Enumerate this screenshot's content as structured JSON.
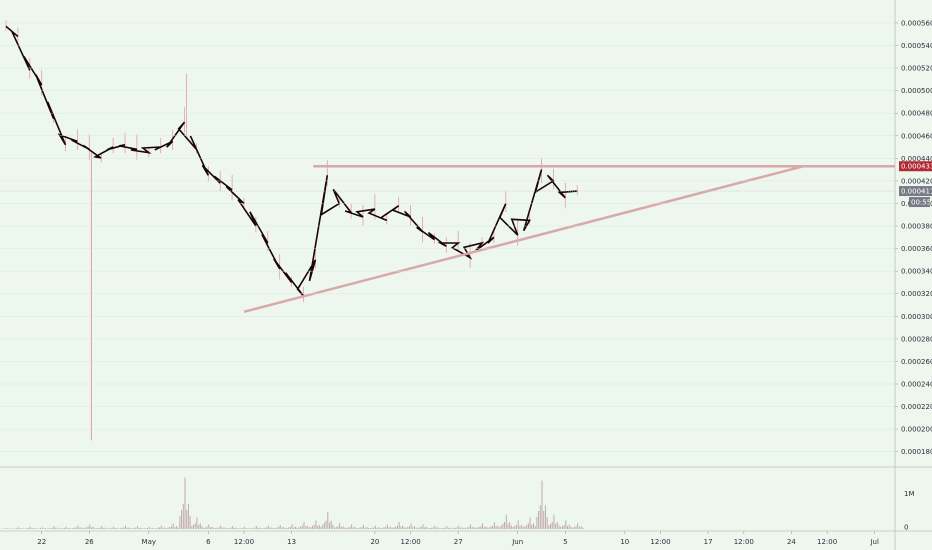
{
  "chart_data": {
    "type": "candlestick",
    "title": "",
    "ylim": [
      0.00017,
      0.000575
    ],
    "y_ticks": [
      "0.000560",
      "0.000540",
      "0.000520",
      "0.000500",
      "0.000480",
      "0.000460",
      "0.000440",
      "0.000420",
      "0.000400",
      "0.000380",
      "0.000360",
      "0.000340",
      "0.000320",
      "0.000300",
      "0.000280",
      "0.000260",
      "0.000240",
      "0.000220",
      "0.000200",
      "0.000180"
    ],
    "x_ticks": [
      "22",
      "26",
      "May",
      "6",
      "12:00",
      "13",
      "20",
      "12:00",
      "27",
      "Jun",
      "5",
      "10",
      "12:00",
      "17",
      "12:00",
      "24",
      "12:00",
      "Jul"
    ],
    "volume_ticks": [
      "1M",
      "0"
    ],
    "price_line": {
      "value": 0.000411,
      "label": "0.000411",
      "color": "#787b86"
    },
    "countdown": {
      "label": "00:55"
    },
    "resistance": {
      "value": 0.000433,
      "label": "0.000433",
      "color": "#b22833"
    },
    "support_trendline": {
      "from": {
        "date": "2019-05-09",
        "value": 0.000304
      },
      "to": {
        "date": "2019-06-25",
        "value": 0.000433
      }
    },
    "series": [
      {
        "date": "2019-04-19",
        "close": 0.000557
      },
      {
        "date": "2019-04-20",
        "close": 0.000548
      },
      {
        "date": "2019-04-21",
        "close": 0.000518
      },
      {
        "date": "2019-04-22",
        "close": 0.000505
      },
      {
        "date": "2019-04-23",
        "close": 0.000475
      },
      {
        "date": "2019-04-24",
        "close": 0.000452
      },
      {
        "date": "2019-04-25",
        "close": 0.000455
      },
      {
        "date": "2019-04-26",
        "close": 0.000448
      },
      {
        "date": "2019-04-27",
        "close": 0.00044
      },
      {
        "date": "2019-04-28",
        "close": 0.00045
      },
      {
        "date": "2019-04-29",
        "close": 0.000452
      },
      {
        "date": "2019-04-30",
        "close": 0.000448
      },
      {
        "date": "2019-05-01",
        "close": 0.000445
      },
      {
        "date": "2019-05-02",
        "close": 0.00045
      },
      {
        "date": "2019-05-03",
        "close": 0.000455
      },
      {
        "date": "2019-05-04",
        "close": 0.000472
      },
      {
        "date": "2019-05-05",
        "close": 0.000448
      },
      {
        "date": "2019-05-06",
        "close": 0.000425
      },
      {
        "date": "2019-05-07",
        "close": 0.000418
      },
      {
        "date": "2019-05-08",
        "close": 0.000412
      },
      {
        "date": "2019-05-09",
        "close": 0.0004
      },
      {
        "date": "2019-05-10",
        "close": 0.00038
      },
      {
        "date": "2019-05-11",
        "close": 0.000365
      },
      {
        "date": "2019-05-12",
        "close": 0.000342
      },
      {
        "date": "2019-05-13",
        "close": 0.00033
      },
      {
        "date": "2019-05-14",
        "close": 0.000318
      },
      {
        "date": "2019-05-15",
        "close": 0.00035
      },
      {
        "date": "2019-05-16",
        "close": 0.000425
      },
      {
        "date": "2019-05-17",
        "close": 0.0004
      },
      {
        "date": "2019-05-18",
        "close": 0.000392
      },
      {
        "date": "2019-05-19",
        "close": 0.000388
      },
      {
        "date": "2019-05-20",
        "close": 0.000395
      },
      {
        "date": "2019-05-21",
        "close": 0.000385
      },
      {
        "date": "2019-05-22",
        "close": 0.000398
      },
      {
        "date": "2019-05-23",
        "close": 0.000388
      },
      {
        "date": "2019-05-24",
        "close": 0.000375
      },
      {
        "date": "2019-05-25",
        "close": 0.000368
      },
      {
        "date": "2019-05-26",
        "close": 0.000362
      },
      {
        "date": "2019-05-27",
        "close": 0.000365
      },
      {
        "date": "2019-05-28",
        "close": 0.000352
      },
      {
        "date": "2019-05-29",
        "close": 0.000365
      },
      {
        "date": "2019-05-30",
        "close": 0.00037
      },
      {
        "date": "2019-05-31",
        "close": 0.0004
      },
      {
        "date": "2019-06-01",
        "close": 0.000372
      },
      {
        "date": "2019-06-02",
        "close": 0.000385
      },
      {
        "date": "2019-06-03",
        "close": 0.00043
      },
      {
        "date": "2019-06-04",
        "close": 0.00042
      },
      {
        "date": "2019-06-05",
        "close": 0.000405
      },
      {
        "date": "2019-06-06",
        "close": 0.000411
      }
    ],
    "volume": [
      {
        "date": "2019-04-19",
        "value": 0.02
      },
      {
        "date": "2019-04-20",
        "value": 0.03
      },
      {
        "date": "2019-04-21",
        "value": 0.04
      },
      {
        "date": "2019-04-22",
        "value": 0.03
      },
      {
        "date": "2019-04-23",
        "value": 0.05
      },
      {
        "date": "2019-04-24",
        "value": 0.04
      },
      {
        "date": "2019-04-25",
        "value": 0.06
      },
      {
        "date": "2019-04-26",
        "value": 0.08
      },
      {
        "date": "2019-04-27",
        "value": 0.05
      },
      {
        "date": "2019-04-28",
        "value": 0.04
      },
      {
        "date": "2019-04-29",
        "value": 0.06
      },
      {
        "date": "2019-04-30",
        "value": 0.05
      },
      {
        "date": "2019-05-01",
        "value": 0.04
      },
      {
        "date": "2019-05-02",
        "value": 0.06
      },
      {
        "date": "2019-05-03",
        "value": 0.1
      },
      {
        "date": "2019-05-04",
        "value": 0.9
      },
      {
        "date": "2019-05-05",
        "value": 0.2
      },
      {
        "date": "2019-05-06",
        "value": 0.08
      },
      {
        "date": "2019-05-07",
        "value": 0.06
      },
      {
        "date": "2019-05-08",
        "value": 0.05
      },
      {
        "date": "2019-05-09",
        "value": 0.04
      },
      {
        "date": "2019-05-10",
        "value": 0.05
      },
      {
        "date": "2019-05-11",
        "value": 0.06
      },
      {
        "date": "2019-05-12",
        "value": 0.07
      },
      {
        "date": "2019-05-13",
        "value": 0.08
      },
      {
        "date": "2019-05-14",
        "value": 0.12
      },
      {
        "date": "2019-05-15",
        "value": 0.15
      },
      {
        "date": "2019-05-16",
        "value": 0.3
      },
      {
        "date": "2019-05-17",
        "value": 0.1
      },
      {
        "date": "2019-05-18",
        "value": 0.08
      },
      {
        "date": "2019-05-19",
        "value": 0.07
      },
      {
        "date": "2019-05-20",
        "value": 0.06
      },
      {
        "date": "2019-05-21",
        "value": 0.08
      },
      {
        "date": "2019-05-22",
        "value": 0.12
      },
      {
        "date": "2019-05-23",
        "value": 0.1
      },
      {
        "date": "2019-05-24",
        "value": 0.08
      },
      {
        "date": "2019-05-25",
        "value": 0.06
      },
      {
        "date": "2019-05-26",
        "value": 0.05
      },
      {
        "date": "2019-05-27",
        "value": 0.06
      },
      {
        "date": "2019-05-28",
        "value": 0.08
      },
      {
        "date": "2019-05-29",
        "value": 0.1
      },
      {
        "date": "2019-05-30",
        "value": 0.12
      },
      {
        "date": "2019-05-31",
        "value": 0.25
      },
      {
        "date": "2019-06-01",
        "value": 0.15
      },
      {
        "date": "2019-06-02",
        "value": 0.2
      },
      {
        "date": "2019-06-03",
        "value": 0.85
      },
      {
        "date": "2019-06-04",
        "value": 0.25
      },
      {
        "date": "2019-06-05",
        "value": 0.15
      },
      {
        "date": "2019-06-06",
        "value": 0.1
      }
    ],
    "colors": {
      "line": "#1a0606",
      "wick": "#e39ba6",
      "down_wick": "#d9868f",
      "annotation": "#d9a8a8",
      "volume": "#c0a8ab",
      "grid": "#d6e6d6",
      "background": "#eef7ee"
    }
  }
}
